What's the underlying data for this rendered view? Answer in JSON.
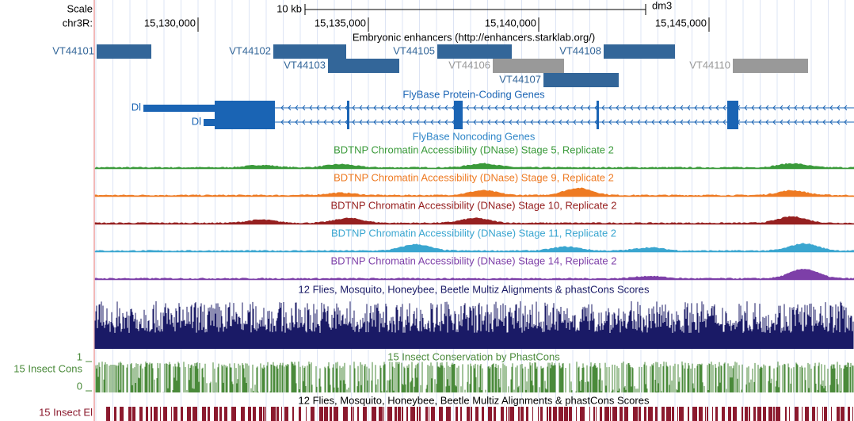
{
  "ruler": {
    "scale_label": "Scale",
    "chrom_label": "chr3R:",
    "scale_bar_label": "10 kb",
    "assembly": "dm3",
    "positions": [
      "15,130,000",
      "15,135,000",
      "15,140,000",
      "15,145,000"
    ]
  },
  "tracks": {
    "enhancers": {
      "title": "Embryonic enhancers (http://enhancers.starklab.org/)",
      "items": [
        "VT44101",
        "VT44102",
        "VT44103",
        "VT44105",
        "VT44106",
        "VT44107",
        "VT44108",
        "VT44110"
      ]
    },
    "protein_coding": {
      "title": "FlyBase Protein-Coding Genes",
      "genes": [
        "Dl",
        "Dl"
      ]
    },
    "noncoding": {
      "title": "FlyBase Noncoding Genes"
    },
    "dnase": [
      {
        "title": "BDTNP Chromatin Accessibility (DNase) Stage 5, Replicate 2"
      },
      {
        "title": "BDTNP Chromatin Accessibility (DNase) Stage 9, Replicate 2"
      },
      {
        "title": "BDTNP Chromatin Accessibility (DNase) Stage 10, Replicate 2"
      },
      {
        "title": "BDTNP Chromatin Accessibility (DNase) Stage 11, Replicate 2"
      },
      {
        "title": "BDTNP Chromatin Accessibility (DNase) Stage 14, Replicate 2"
      }
    ],
    "multiz": {
      "title": "12 Flies, Mosquito, Honeybee, Beetle Multiz Alignments & phastCons Scores"
    },
    "phastcons": {
      "title": "15 Insect Conservation by PhastCons",
      "label": "15 Insect Cons",
      "axis_max": "1",
      "axis_min": "0"
    },
    "elements": {
      "title": "12 Flies, Mosquito, Honeybee, Beetle Multiz Alignments & phastCons Scores",
      "label": "15 Insect El"
    }
  }
}
